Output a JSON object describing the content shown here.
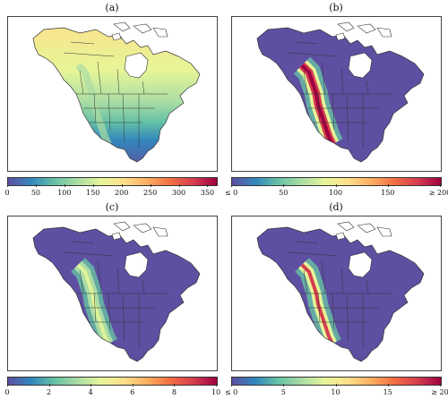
{
  "colors": {
    "ocean": "#ffffff",
    "land_low": "#5e4fa2",
    "land_blue": "#3288bd",
    "land_teal": "#66c2a5",
    "land_green": "#abdda4",
    "land_yellow": "#e6f598",
    "land_pale": "#fee08b",
    "land_orange": "#fdae61",
    "land_red": "#d53e4f",
    "land_dark": "#9e0142",
    "border": "#333333"
  },
  "colormap": [
    "#5e4fa2",
    "#3288bd",
    "#66c2a5",
    "#abdda4",
    "#e6f598",
    "#fee08b",
    "#fdae61",
    "#f46d43",
    "#d53e4f",
    "#9e0142"
  ],
  "panels": [
    {
      "label": "(a)",
      "scheme": "a",
      "colorbar_ticks": [
        "0",
        "50",
        "100",
        "150",
        "200",
        "250",
        "300",
        "350"
      ],
      "colorbar_values": [
        0,
        50,
        100,
        150,
        200,
        250,
        300,
        350
      ],
      "colorbar_range": [
        0,
        365
      ]
    },
    {
      "label": "(b)",
      "scheme": "b",
      "colorbar_ticks": [
        "≤ 0",
        "50",
        "100",
        "150",
        "≥ 200"
      ],
      "colorbar_values": [
        0,
        50,
        100,
        150,
        200
      ],
      "colorbar_range": [
        0,
        200
      ]
    },
    {
      "label": "(c)",
      "scheme": "c",
      "colorbar_ticks": [
        "0",
        "2",
        "4",
        "6",
        "8",
        "10"
      ],
      "colorbar_values": [
        0,
        2,
        4,
        6,
        8,
        10
      ],
      "colorbar_range": [
        0,
        10
      ]
    },
    {
      "label": "(d)",
      "scheme": "d",
      "colorbar_ticks": [
        "≤ 0",
        "5",
        "10",
        "15",
        "≥ 20"
      ],
      "colorbar_values": [
        0,
        5,
        10,
        15,
        20
      ],
      "colorbar_range": [
        0,
        20
      ]
    }
  ]
}
